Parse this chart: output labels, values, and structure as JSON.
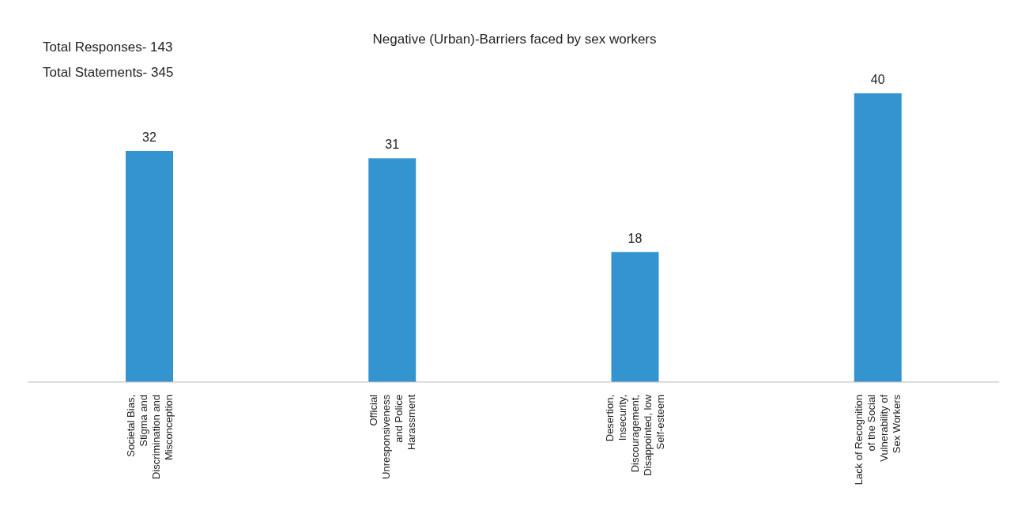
{
  "chart_data": {
    "type": "bar",
    "title": "Negative (Urban)-Barriers faced by sex workers",
    "annotations": [
      "Total Responses- 143",
      "Total Statements- 345"
    ],
    "categories": [
      "Societal Bias, Stigma and Discrimination and Misconception",
      "Official Unresponsiveness and Police Harassment",
      "Desertion, Insecurity, Discouragement, Disappointed, low Self-esteem",
      "Lack of Recognition of the Social Vulnerability of Sex Workers"
    ],
    "values": [
      32,
      31,
      18,
      40
    ],
    "color": "#3394cf",
    "data_labels": true,
    "grid": false,
    "legend": false
  }
}
